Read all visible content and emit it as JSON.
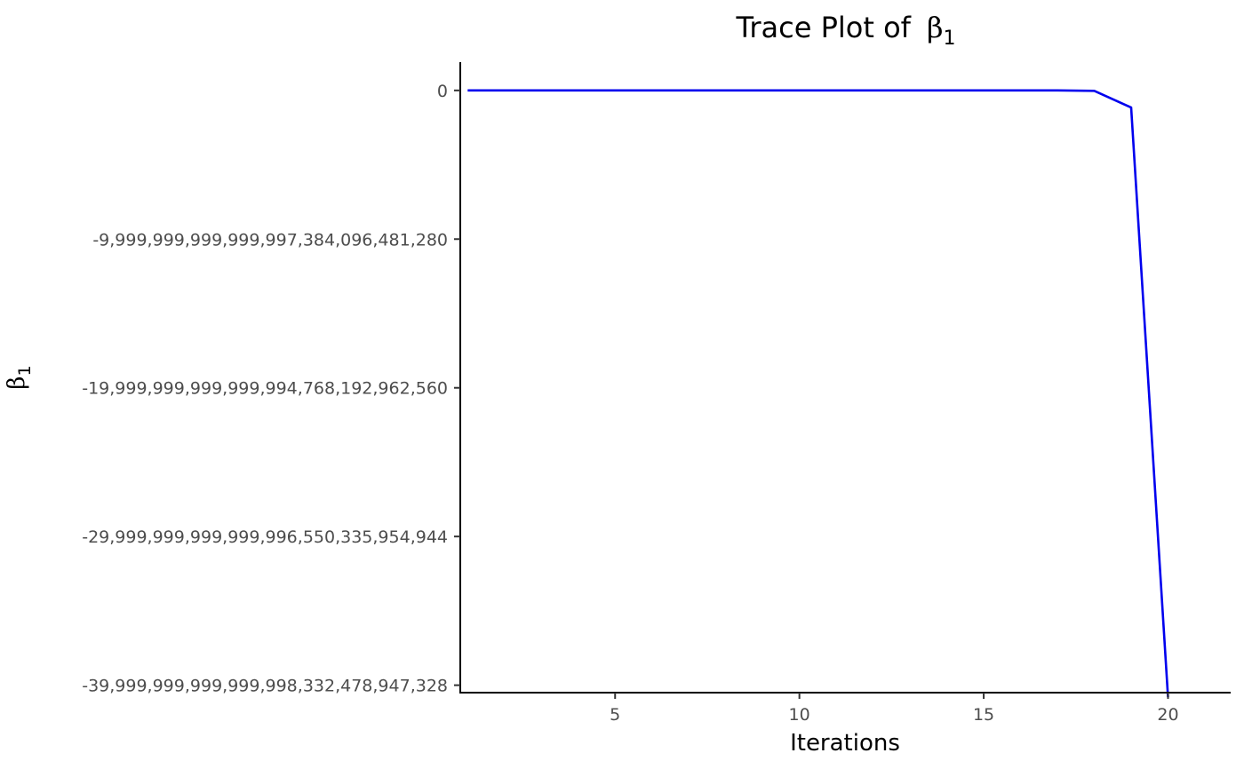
{
  "chart_data": {
    "type": "line",
    "title": "Trace Plot of",
    "title_symbol": "β",
    "title_subscript": "1",
    "xlabel": "Iterations",
    "ylabel_symbol": "β",
    "ylabel_subscript": "1",
    "xlim": [
      0.8,
      21.7
    ],
    "ylim": [
      -40500000000000000000000000000,
      1900000000000000000000000000
    ],
    "x_ticks": [
      {
        "value": 5,
        "label": "5"
      },
      {
        "value": 10,
        "label": "10"
      },
      {
        "value": 15,
        "label": "15"
      },
      {
        "value": 20,
        "label": "20"
      }
    ],
    "y_ticks": [
      {
        "value": 0,
        "label": "0"
      },
      {
        "value": -10000000000000000000000000000,
        "label": "-9,999,999,999,999,997,384,096,481,280"
      },
      {
        "value": -20000000000000000000000000000,
        "label": "-19,999,999,999,999,994,768,192,962,560"
      },
      {
        "value": -30000000000000000000000000000,
        "label": "-29,999,999,999,999,996,550,335,954,944"
      },
      {
        "value": -40000000000000000000000000000,
        "label": "-39,999,999,999,999,998,332,478,947,328"
      }
    ],
    "series": [
      {
        "color": "#0000ee",
        "x": [
          1,
          2,
          3,
          4,
          5,
          6,
          7,
          8,
          9,
          10,
          11,
          12,
          13,
          14,
          15,
          16,
          17,
          18,
          19,
          20
        ],
        "y": [
          0,
          0,
          0,
          0,
          0,
          0,
          0,
          0,
          0,
          0,
          0,
          0,
          0,
          0,
          0,
          0,
          0,
          -30000000000000000000000000,
          -1150000000000000000000000000,
          -40800000000000000000000000000
        ]
      }
    ],
    "grid": false,
    "legend": "none"
  }
}
